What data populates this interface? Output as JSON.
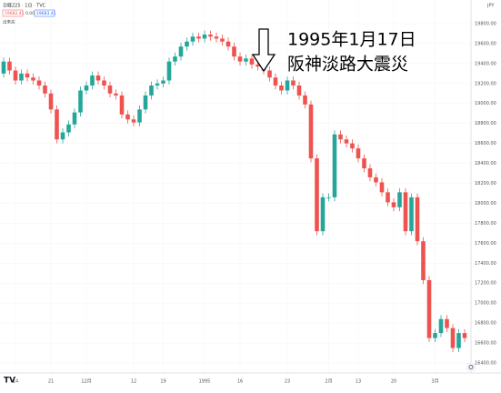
{
  "chart_data": {
    "type": "candlestick",
    "symbol": "日経225 · 1日 · TVC",
    "price_boxes": [
      "19682.41",
      "0.00",
      "19683.41"
    ],
    "volume_label": "出来高",
    "currency": "JPY",
    "annotations": [
      "1995年1月17日",
      "阪神淡路大震災"
    ],
    "up_color": "#26a69a",
    "down_color": "#ef5350",
    "open": [
      19300,
      19420,
      19330,
      19230,
      19300,
      19260,
      19230,
      19180,
      19100,
      18940,
      18640,
      18710,
      18790,
      18910,
      19130,
      19180,
      19280,
      19230,
      19180,
      19100,
      19080,
      18890,
      18840,
      18810,
      18940,
      19080,
      19180,
      19200,
      19230,
      19420,
      19470,
      19570,
      19620,
      19670,
      19650,
      19690,
      19670,
      19650,
      19620,
      19570,
      19470,
      19420,
      19450,
      19390,
      19370,
      19330,
      19260,
      19180,
      19130,
      19230,
      19180,
      19080,
      18990,
      18450,
      17720,
      18060,
      18060,
      18690,
      18640,
      18600,
      18550,
      18450,
      18350,
      18260,
      18210,
      18110,
      18010,
      17960,
      18110,
      17720,
      18060,
      17620,
      17230,
      16650,
      16700,
      16840,
      16750,
      16550,
      16700
    ],
    "high": [
      19460,
      19460,
      19370,
      19340,
      19340,
      19300,
      19270,
      19220,
      19140,
      18980,
      18750,
      18830,
      18950,
      19170,
      19220,
      19320,
      19320,
      19270,
      19220,
      19140,
      19120,
      18930,
      18880,
      18980,
      19120,
      19220,
      19240,
      19270,
      19460,
      19510,
      19610,
      19660,
      19710,
      19710,
      19730,
      19730,
      19710,
      19690,
      19660,
      19610,
      19510,
      19490,
      19490,
      19430,
      19410,
      19370,
      19300,
      19220,
      19270,
      19270,
      19220,
      19120,
      19030,
      18490,
      18100,
      18100,
      18730,
      18730,
      18680,
      18640,
      18590,
      18490,
      18390,
      18300,
      18250,
      18150,
      18050,
      18150,
      18150,
      18100,
      18100,
      17660,
      17270,
      16740,
      16880,
      16880,
      16790,
      16740,
      16740
    ],
    "low": [
      19260,
      19290,
      19190,
      19190,
      19220,
      19190,
      19140,
      19060,
      18900,
      18600,
      18600,
      18670,
      18750,
      18870,
      19090,
      19140,
      19190,
      19140,
      19060,
      19040,
      18850,
      18800,
      18770,
      18770,
      18900,
      19040,
      19140,
      19160,
      19190,
      19380,
      19430,
      19530,
      19580,
      19610,
      19610,
      19630,
      19610,
      19580,
      19530,
      19430,
      19380,
      19380,
      19350,
      19330,
      19290,
      19220,
      19140,
      19090,
      19090,
      19140,
      19040,
      18950,
      18410,
      17680,
      17680,
      18020,
      18020,
      18600,
      18560,
      18510,
      18410,
      18310,
      18220,
      18170,
      18070,
      17970,
      17920,
      17920,
      17680,
      17680,
      17580,
      17190,
      16610,
      16610,
      16660,
      16710,
      16510,
      16510,
      16610
    ],
    "close": [
      19420,
      19330,
      19230,
      19300,
      19260,
      19230,
      19180,
      19100,
      18940,
      18640,
      18710,
      18790,
      18910,
      19130,
      19180,
      19280,
      19230,
      19180,
      19100,
      19080,
      18890,
      18840,
      18810,
      18940,
      19080,
      19180,
      19200,
      19230,
      19420,
      19470,
      19570,
      19620,
      19670,
      19650,
      19690,
      19670,
      19650,
      19620,
      19570,
      19470,
      19420,
      19450,
      19390,
      19370,
      19330,
      19260,
      19180,
      19130,
      19230,
      19180,
      19080,
      18990,
      18450,
      17720,
      18060,
      18060,
      18690,
      18640,
      18600,
      18550,
      18450,
      18350,
      18260,
      18210,
      18110,
      18010,
      17960,
      18110,
      17720,
      18060,
      17620,
      17230,
      16650,
      16700,
      16840,
      16750,
      16550,
      16700,
      16650
    ],
    "xticks": [
      {
        "value": 2,
        "label": "14"
      },
      {
        "value": 8,
        "label": "21"
      },
      {
        "value": 14,
        "label": "12月"
      },
      {
        "value": 22,
        "label": "12"
      },
      {
        "value": 27,
        "label": "19"
      },
      {
        "value": 34,
        "label": "1995"
      },
      {
        "value": 40,
        "label": "16"
      },
      {
        "value": 48,
        "label": "23"
      },
      {
        "value": 55,
        "label": "2月"
      },
      {
        "value": 60,
        "label": "13"
      },
      {
        "value": 66,
        "label": "20"
      },
      {
        "value": 73,
        "label": "3月"
      }
    ],
    "ylim": [
      16300,
      20000
    ],
    "yticks": [
      {
        "value": 16400,
        "label": "16400.00"
      },
      {
        "value": 16600,
        "label": "16600.00"
      },
      {
        "value": 16800,
        "label": "16800.00"
      },
      {
        "value": 17000,
        "label": "17000.00"
      },
      {
        "value": 17200,
        "label": "17200.00"
      },
      {
        "value": 17400,
        "label": "17400.00"
      },
      {
        "value": 17600,
        "label": "17600.00"
      },
      {
        "value": 17800,
        "label": "17800.00"
      },
      {
        "value": 18000,
        "label": "18000.00"
      },
      {
        "value": 18200,
        "label": "18200.00"
      },
      {
        "value": 18400,
        "label": "18400.00"
      },
      {
        "value": 18600,
        "label": "18600.00"
      },
      {
        "value": 18800,
        "label": "18800.00"
      },
      {
        "value": 19000,
        "label": "19000.00"
      },
      {
        "value": 19200,
        "label": "19200.00"
      },
      {
        "value": 19400,
        "label": "19400.00"
      },
      {
        "value": 19600,
        "label": "19600.00"
      },
      {
        "value": 19800,
        "label": "19800.00"
      }
    ]
  }
}
